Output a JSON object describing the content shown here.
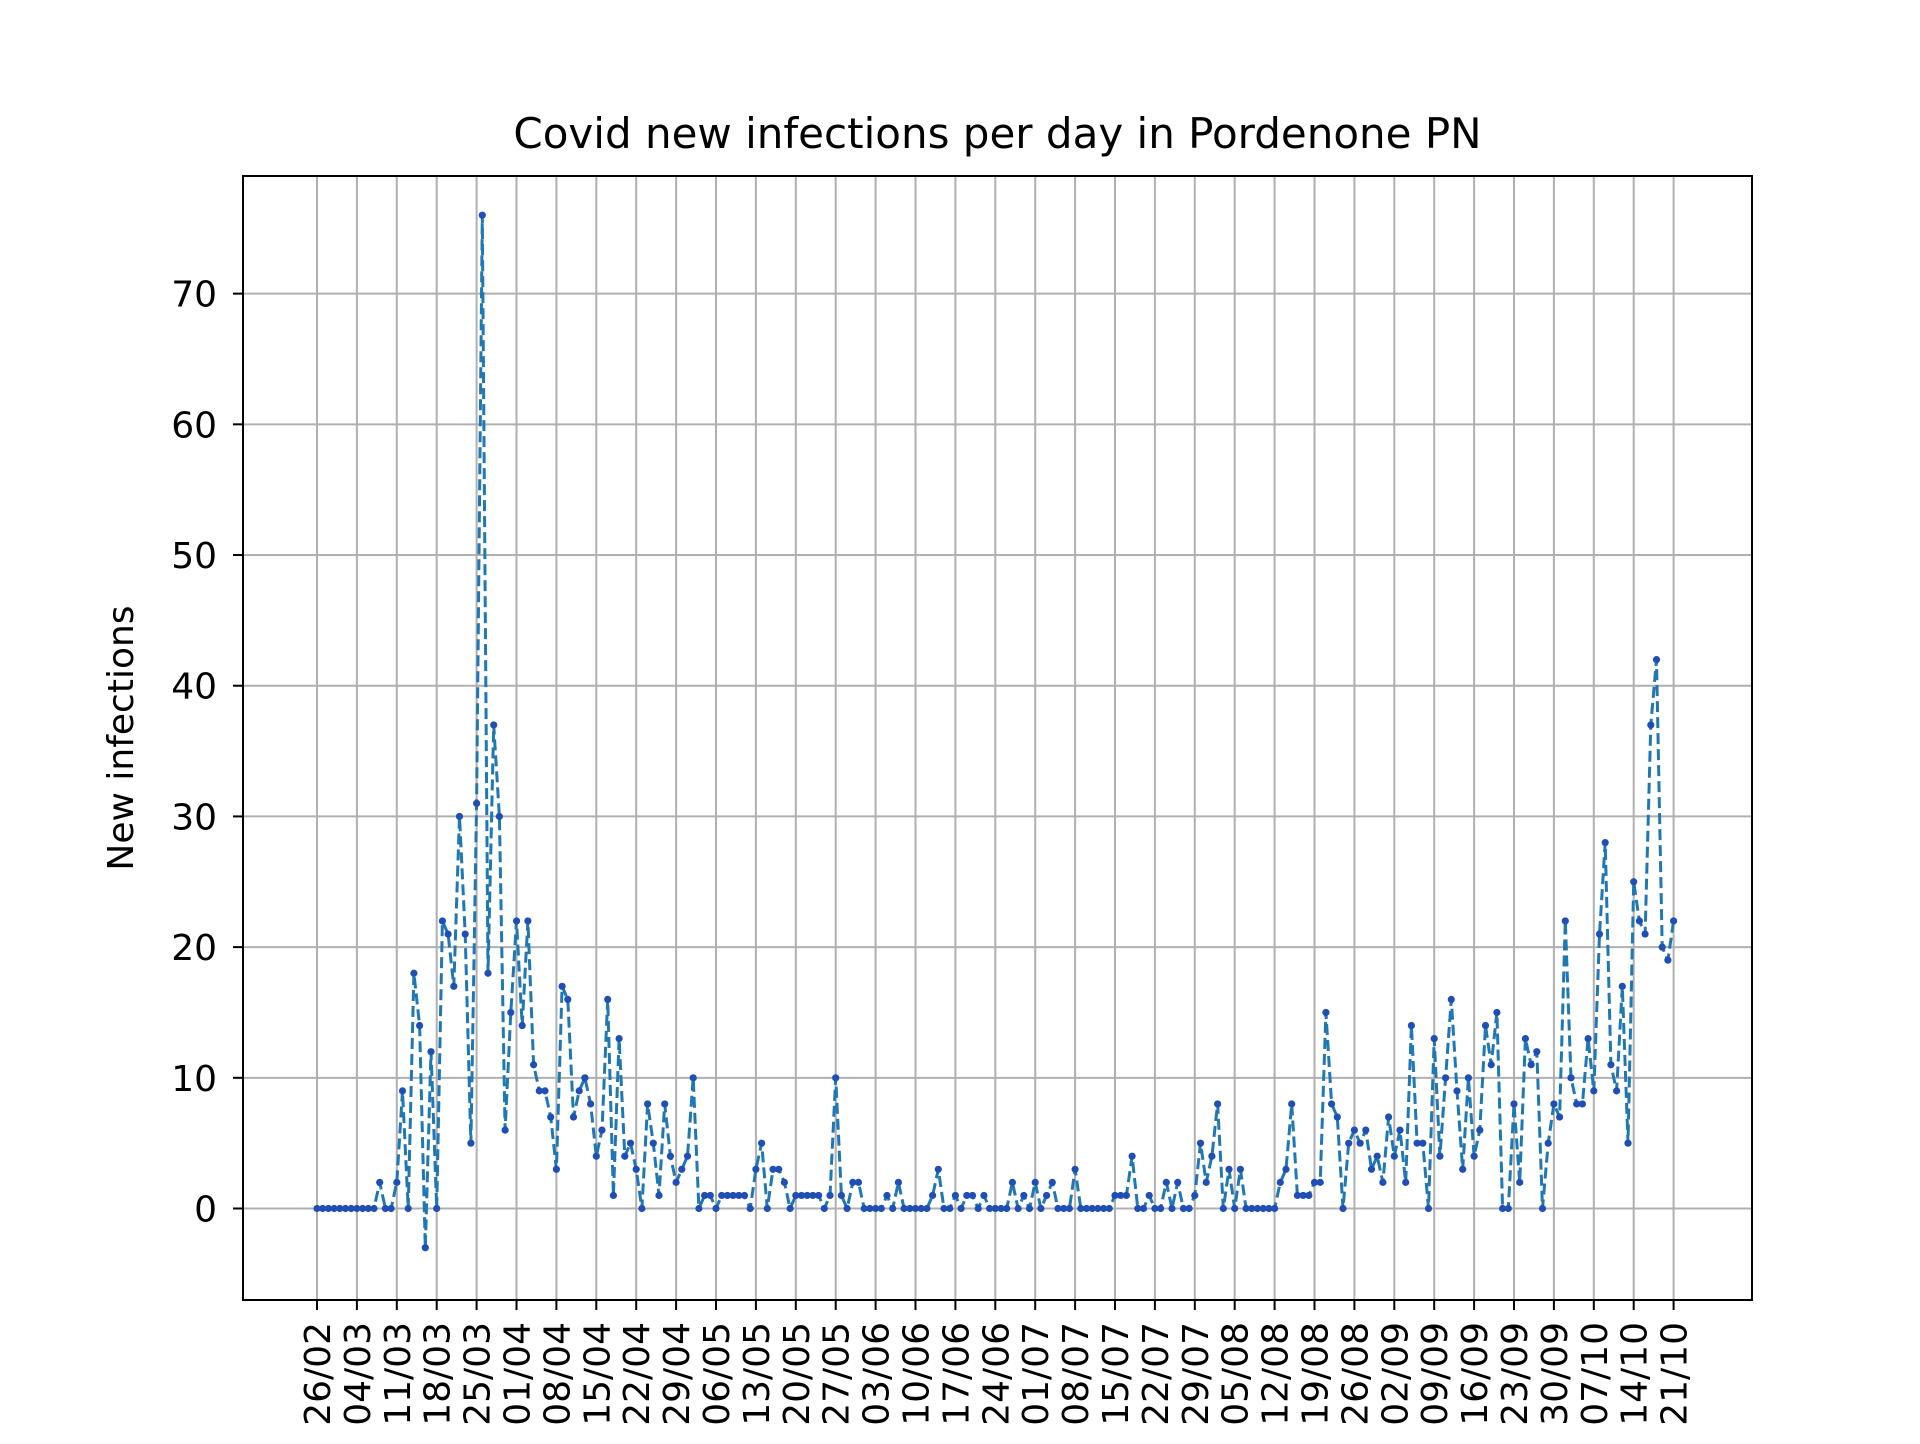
{
  "chart_data": {
    "type": "line",
    "title": "Covid new infections per day in Pordenone PN",
    "xlabel": "",
    "ylabel": "New infections",
    "ylim": [
      -7,
      79
    ],
    "yticks": [
      0,
      10,
      20,
      30,
      40,
      50,
      60,
      70
    ],
    "grid": true,
    "legend": "none",
    "colors": {
      "line": "#1f77b4",
      "marker": "#1f4fb4",
      "grid": "#b0b0b0",
      "axes": "#000000"
    },
    "line_style": "dashed",
    "marker": "dot",
    "start_date": "26/02",
    "x_tick_labels": [
      "26/02",
      "04/03",
      "11/03",
      "18/03",
      "25/03",
      "01/04",
      "08/04",
      "15/04",
      "22/04",
      "29/04",
      "06/05",
      "13/05",
      "20/05",
      "27/05",
      "03/06",
      "10/06",
      "17/06",
      "24/06",
      "01/07",
      "08/07",
      "15/07",
      "22/07",
      "29/07",
      "05/08",
      "12/08",
      "19/08",
      "26/08",
      "02/09",
      "09/09",
      "16/09",
      "23/09",
      "30/09",
      "07/10",
      "14/10",
      "21/10"
    ],
    "values": [
      0,
      0,
      0,
      0,
      0,
      0,
      0,
      0,
      0,
      0,
      0,
      2,
      0,
      0,
      2,
      9,
      0,
      18,
      14,
      -3,
      12,
      0,
      22,
      21,
      17,
      30,
      21,
      5,
      31,
      76,
      18,
      37,
      30,
      6,
      15,
      22,
      14,
      22,
      11,
      9,
      9,
      7,
      3,
      17,
      16,
      7,
      9,
      10,
      8,
      4,
      6,
      16,
      1,
      13,
      4,
      5,
      3,
      0,
      8,
      5,
      1,
      8,
      4,
      2,
      3,
      4,
      10,
      0,
      1,
      1,
      0,
      1,
      1,
      1,
      1,
      1,
      0,
      3,
      5,
      0,
      3,
      3,
      2,
      0,
      1,
      1,
      1,
      1,
      1,
      0,
      1,
      10,
      1,
      0,
      2,
      2,
      0,
      0,
      0,
      0,
      1,
      0,
      2,
      0,
      0,
      0,
      0,
      0,
      1,
      3,
      0,
      0,
      1,
      0,
      1,
      1,
      0,
      1,
      0,
      0,
      0,
      0,
      2,
      0,
      1,
      0,
      2,
      0,
      1,
      2,
      0,
      0,
      0,
      3,
      0,
      0,
      0,
      0,
      0,
      0,
      1,
      1,
      1,
      4,
      0,
      0,
      1,
      0,
      0,
      2,
      0,
      2,
      0,
      0,
      1,
      5,
      2,
      4,
      8,
      0,
      3,
      0,
      3,
      0,
      0,
      0,
      0,
      0,
      0,
      2,
      3,
      8,
      1,
      1,
      1,
      2,
      2,
      15,
      8,
      7,
      0,
      5,
      6,
      5,
      6,
      3,
      4,
      2,
      7,
      4,
      6,
      2,
      14,
      5,
      5,
      0,
      13,
      4,
      10,
      16,
      9,
      3,
      10,
      4,
      6,
      14,
      11,
      15,
      0,
      0,
      8,
      2,
      13,
      11,
      12,
      0,
      5,
      8,
      7,
      22,
      10,
      8,
      8,
      13,
      9,
      21,
      28,
      11,
      9,
      17,
      5,
      25,
      22,
      21,
      37,
      42,
      20,
      19,
      22
    ]
  }
}
